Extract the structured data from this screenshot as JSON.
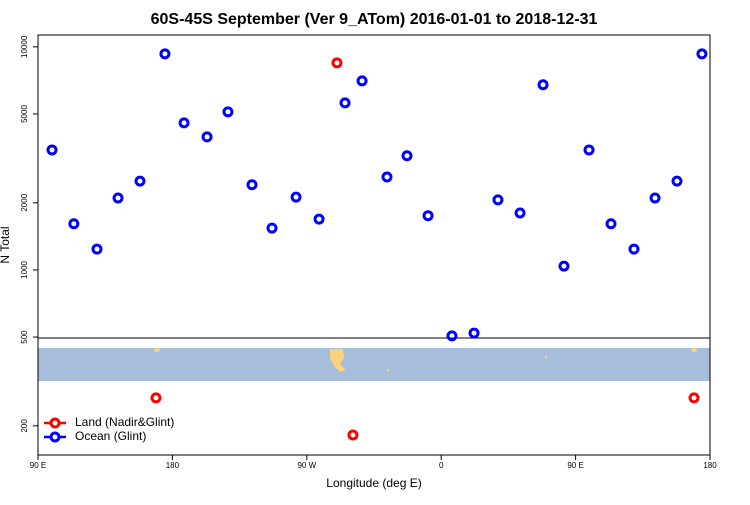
{
  "chart_data": {
    "type": "scatter",
    "title": "60S-45S September (Ver 9_ATom)   2016-01-01 to 2018-12-31",
    "x_label": "Longitude (deg E)",
    "y_label": "N Total",
    "log_y": true,
    "legend": "lower left",
    "xlim": [
      90,
      540
    ],
    "xticks": [
      {
        "value": 90,
        "label": "90 E"
      },
      {
        "value": 180,
        "label": "180"
      },
      {
        "value": 270,
        "label": "90 W"
      },
      {
        "value": 360,
        "label": "0"
      },
      {
        "value": 450,
        "label": "90 E"
      },
      {
        "value": 540,
        "label": "180"
      }
    ],
    "ylim": [
      148,
      11300
    ],
    "yticks": [
      200,
      500,
      1000,
      2000,
      5000,
      10000
    ],
    "series": [
      {
        "name": "Land (Nadir&Glint)",
        "color": "#ff0000",
        "x": [
          290.2,
          169,
          300.9,
          529.3
        ],
        "values": [
          8480,
          267,
          182,
          267
        ]
      },
      {
        "name": "Ocean (Glint)",
        "color": "#0000ff",
        "x": [
          99.4,
          114,
          129.5,
          143.6,
          158.3,
          175,
          187.8,
          203.2,
          217.2,
          233.3,
          246.7,
          262.8,
          278.2,
          295.6,
          307,
          323.7,
          337.1,
          351.2,
          367.2,
          382,
          398,
          412.8,
          428.2,
          442.2,
          459,
          473.7,
          489.1,
          503.2,
          517.9,
          534.6
        ],
        "values": [
          3450,
          1610,
          1240,
          2100,
          2500,
          9300,
          4560,
          3950,
          5110,
          2410,
          1540,
          2120,
          1690,
          5610,
          7040,
          2610,
          3250,
          1750,
          506,
          521,
          2060,
          1800,
          6760,
          1040,
          3450,
          1610,
          1240,
          2100,
          2500,
          9300
        ]
      }
    ]
  }
}
